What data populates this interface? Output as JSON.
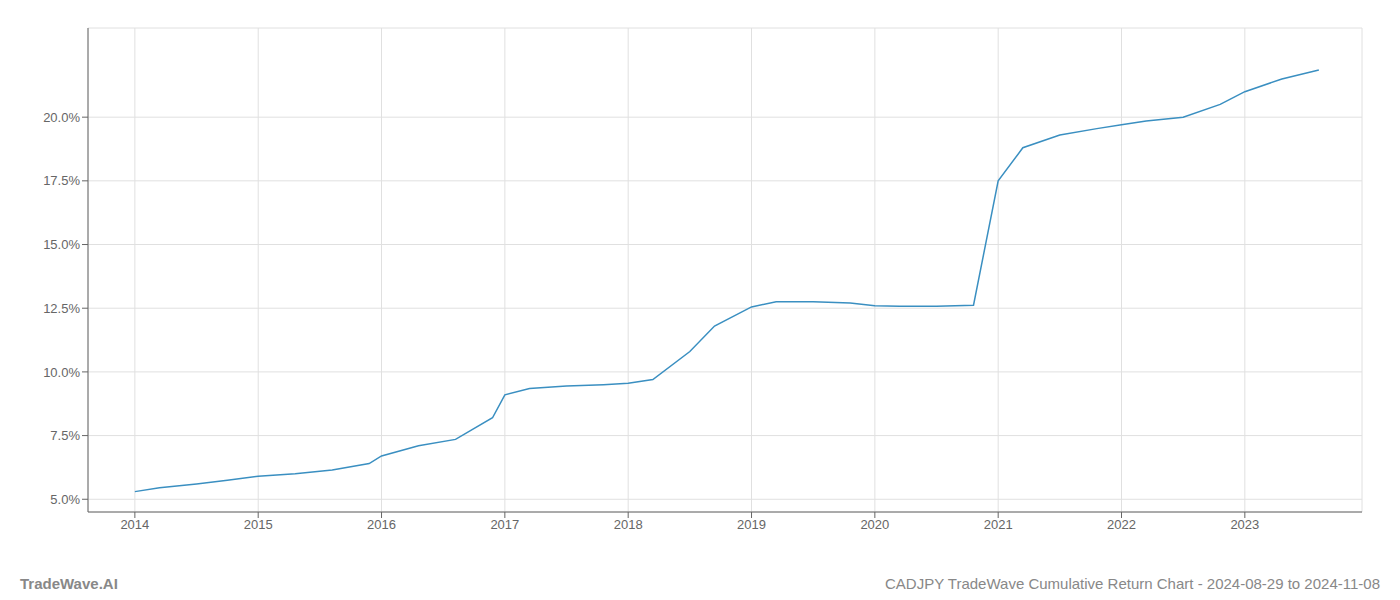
{
  "chart_data": {
    "type": "line",
    "title": "CADJPY TradeWave Cumulative Return Chart - 2024-08-29 to 2024-11-08",
    "annotations": [
      {
        "text": "TradeWave.AI"
      }
    ],
    "x": [
      2014.0,
      2014.2,
      2014.5,
      2014.75,
      2015.0,
      2015.3,
      2015.6,
      2015.9,
      2016.0,
      2016.3,
      2016.6,
      2016.9,
      2017.0,
      2017.2,
      2017.5,
      2017.8,
      2018.0,
      2018.2,
      2018.5,
      2018.7,
      2019.0,
      2019.2,
      2019.5,
      2019.8,
      2020.0,
      2020.2,
      2020.5,
      2020.8,
      2021.0,
      2021.2,
      2021.5,
      2021.8,
      2022.0,
      2022.2,
      2022.5,
      2022.8,
      2023.0,
      2023.3,
      2023.6
    ],
    "values": [
      5.3,
      5.45,
      5.6,
      5.75,
      5.9,
      6.0,
      6.15,
      6.4,
      6.7,
      7.1,
      7.35,
      8.2,
      9.1,
      9.35,
      9.45,
      9.5,
      9.55,
      9.7,
      10.8,
      11.8,
      12.55,
      12.75,
      12.75,
      12.7,
      12.6,
      12.58,
      12.58,
      12.62,
      17.5,
      18.8,
      19.3,
      19.55,
      19.7,
      19.85,
      20.0,
      20.5,
      21.0,
      21.5,
      21.85
    ],
    "color": "#3a8fc1",
    "xlim": [
      2013.62,
      2023.95
    ],
    "ylim": [
      4.5,
      23.5
    ],
    "xticks": [
      2014,
      2015,
      2016,
      2017,
      2018,
      2019,
      2020,
      2021,
      2022,
      2023
    ],
    "yticks": [
      {
        "value": 5.0,
        "label": "5.0%"
      },
      {
        "value": 7.5,
        "label": "7.5%"
      },
      {
        "value": 10.0,
        "label": "10.0%"
      },
      {
        "value": 12.5,
        "label": "12.5%"
      },
      {
        "value": 15.0,
        "label": "15.0%"
      },
      {
        "value": 17.5,
        "label": "17.5%"
      },
      {
        "value": 20.0,
        "label": "20.0%"
      }
    ],
    "grid": true
  }
}
